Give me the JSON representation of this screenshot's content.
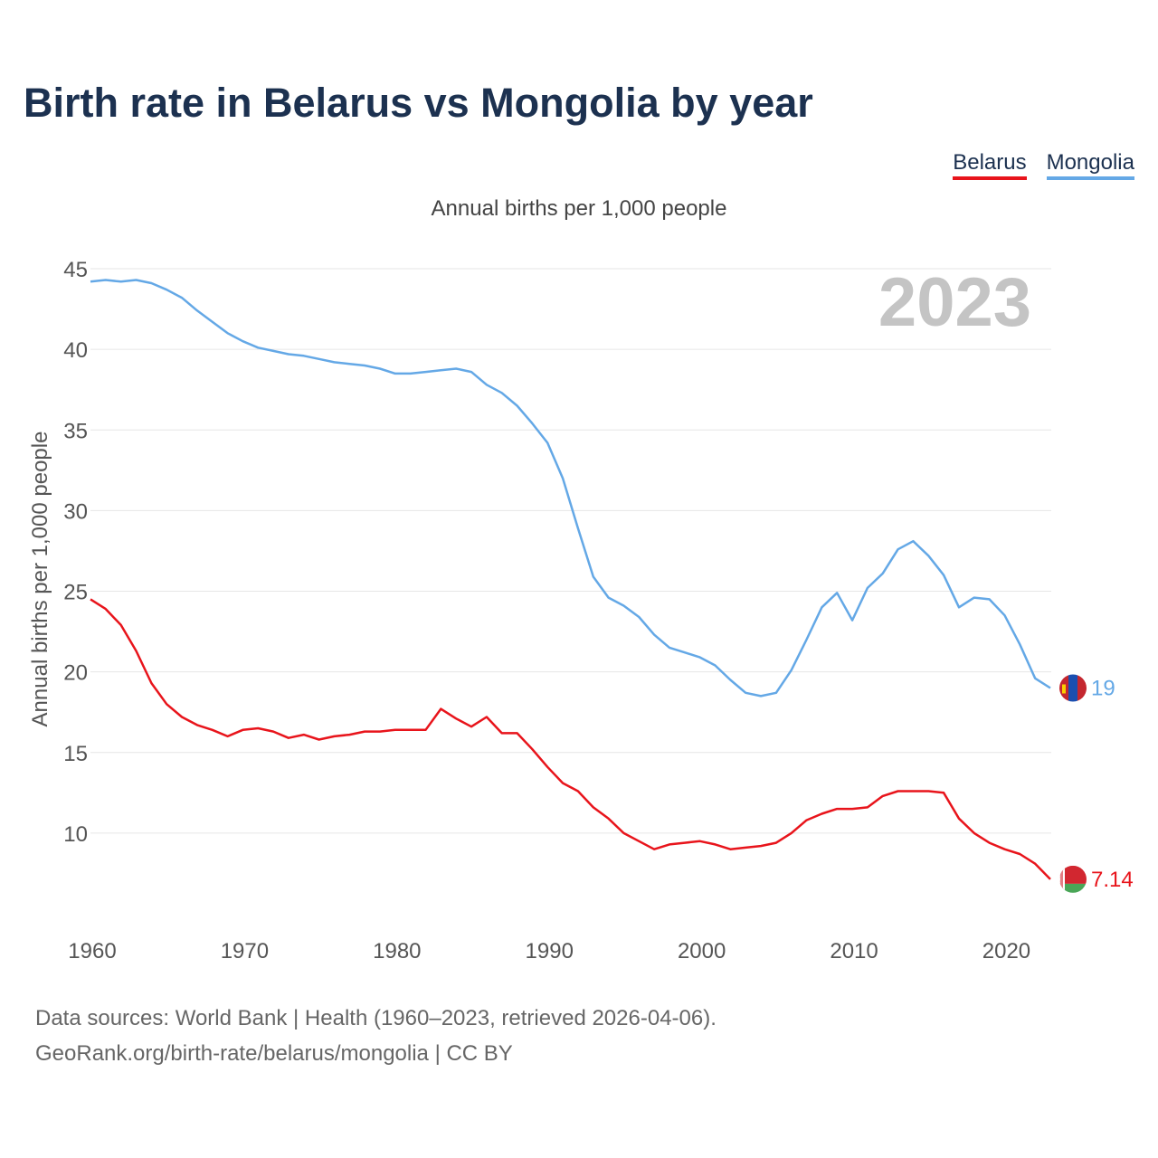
{
  "header": {
    "title": "Birth rate in Belarus vs Mongolia by year"
  },
  "legend": [
    {
      "label": "Belarus",
      "color": "#e8141b"
    },
    {
      "label": "Mongolia",
      "color": "#64a8e6"
    }
  ],
  "footer": {
    "line1": "Data sources: World Bank | Health (1960–2023, retrieved 2026-04-06).",
    "line2": "GeoRank.org/birth-rate/belarus/mongolia | CC BY"
  },
  "chart_data": {
    "type": "line",
    "title": "Birth rate in Belarus vs Mongolia by year",
    "subtitle": "Annual births per 1,000 people",
    "ylabel": "Annual births per 1,000 people",
    "xlabel": "",
    "year_label": "2023",
    "xlim": [
      1960,
      2023
    ],
    "ylim": [
      5,
      45
    ],
    "yticks": [
      10,
      15,
      20,
      25,
      30,
      35,
      40,
      45
    ],
    "xticks": [
      1960,
      1970,
      1980,
      1990,
      2000,
      2010,
      2020
    ],
    "grid": true,
    "legend_position": "top-right",
    "x": [
      1960,
      1961,
      1962,
      1963,
      1964,
      1965,
      1966,
      1967,
      1968,
      1969,
      1970,
      1971,
      1972,
      1973,
      1974,
      1975,
      1976,
      1977,
      1978,
      1979,
      1980,
      1981,
      1982,
      1983,
      1984,
      1985,
      1986,
      1987,
      1988,
      1989,
      1990,
      1991,
      1992,
      1993,
      1994,
      1995,
      1996,
      1997,
      1998,
      1999,
      2000,
      2001,
      2002,
      2003,
      2004,
      2005,
      2006,
      2007,
      2008,
      2009,
      2010,
      2011,
      2012,
      2013,
      2014,
      2015,
      2016,
      2017,
      2018,
      2019,
      2020,
      2021,
      2022,
      2023
    ],
    "series": [
      {
        "name": "Belarus",
        "color": "#e8141b",
        "end_label": "7.14",
        "values": [
          24.5,
          23.9,
          22.9,
          21.3,
          19.3,
          18.0,
          17.2,
          16.7,
          16.4,
          16.0,
          16.4,
          16.5,
          16.3,
          15.9,
          16.1,
          15.8,
          16.0,
          16.1,
          16.3,
          16.3,
          16.4,
          16.4,
          16.4,
          17.7,
          17.1,
          16.6,
          17.2,
          16.2,
          16.2,
          15.2,
          14.1,
          13.1,
          12.6,
          11.6,
          10.9,
          10.0,
          9.5,
          9.0,
          9.3,
          9.4,
          9.5,
          9.3,
          9.0,
          9.1,
          9.2,
          9.4,
          10.0,
          10.8,
          11.2,
          11.5,
          11.5,
          11.6,
          12.3,
          12.6,
          12.6,
          12.6,
          12.5,
          10.9,
          10.0,
          9.4,
          9.0,
          8.7,
          8.1,
          7.14
        ]
      },
      {
        "name": "Mongolia",
        "color": "#64a8e6",
        "end_label": "19",
        "values": [
          44.2,
          44.3,
          44.2,
          44.3,
          44.1,
          43.7,
          43.2,
          42.4,
          41.7,
          41.0,
          40.5,
          40.1,
          39.9,
          39.7,
          39.6,
          39.4,
          39.2,
          39.1,
          39.0,
          38.8,
          38.5,
          38.5,
          38.6,
          38.7,
          38.8,
          38.6,
          37.8,
          37.3,
          36.5,
          35.4,
          34.2,
          32.0,
          28.9,
          25.9,
          24.6,
          24.1,
          23.4,
          22.3,
          21.5,
          21.2,
          20.9,
          20.4,
          19.5,
          18.7,
          18.5,
          18.7,
          20.1,
          22.0,
          24.0,
          24.9,
          23.2,
          25.2,
          26.1,
          27.6,
          28.1,
          27.2,
          26.0,
          24.0,
          24.6,
          24.5,
          23.5,
          21.7,
          19.6,
          19.0
        ]
      }
    ]
  }
}
